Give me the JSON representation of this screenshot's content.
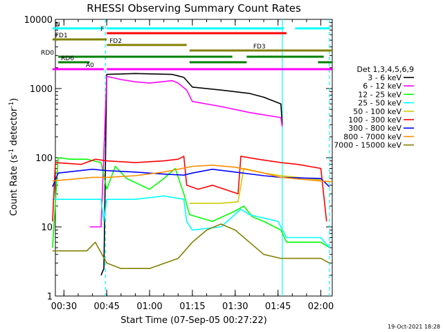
{
  "chart_data": {
    "type": "line",
    "title": "RHESSI Observing Summary Count Rates",
    "xlabel": "Start Time (07-Sep-05 00:27:22)",
    "ylabel": "Count Rate (s^-1 detector^-1)",
    "ylabel_parts": {
      "main": "Count Rate (s",
      "sup1": "-1",
      "mid": " detector",
      "sup2": "-1",
      "end": ")"
    },
    "y_scale": "log",
    "ylim": [
      1,
      10000
    ],
    "xlim": [
      "00:27:22",
      "02:04:30"
    ],
    "x_ticks": [
      "00:30",
      "00:45",
      "01:00",
      "01:15",
      "01:30",
      "01:45",
      "02:00"
    ],
    "y_ticks": [
      "1",
      "10",
      "100",
      "1000",
      "10000"
    ],
    "legend_title": "Det 1,3,4,5,6,9",
    "legend_position": "right",
    "footer_date": "19-Oct-2021 18:28",
    "series": [
      {
        "name": "3 - 6 keV",
        "color": "#000000",
        "points": [
          [
            "00:43",
            2
          ],
          [
            "00:44",
            2.5
          ],
          [
            "00:45",
            1600
          ],
          [
            "00:55",
            1650
          ],
          [
            "01:08",
            1600
          ],
          [
            "01:12",
            1450
          ],
          [
            "01:15",
            1050
          ],
          [
            "01:25",
            950
          ],
          [
            "01:35",
            850
          ],
          [
            "01:40",
            750
          ],
          [
            "01:46",
            600
          ],
          [
            "01:46.5",
            300
          ]
        ]
      },
      {
        "name": "6 - 12 keV",
        "color": "#ff00ff",
        "points": [
          [
            "00:39",
            10
          ],
          [
            "00:43",
            10
          ],
          [
            "00:45",
            1500
          ],
          [
            "00:50",
            1350
          ],
          [
            "00:55",
            1250
          ],
          [
            "01:00",
            1200
          ],
          [
            "01:08",
            1300
          ],
          [
            "01:10",
            1200
          ],
          [
            "01:13",
            950
          ],
          [
            "01:15",
            650
          ],
          [
            "01:25",
            550
          ],
          [
            "01:35",
            450
          ],
          [
            "01:46",
            380
          ],
          [
            "01:46.5",
            280
          ]
        ]
      },
      {
        "name": "12 - 25 keV",
        "color": "#00ff00",
        "points": [
          [
            "00:26",
            5
          ],
          [
            "00:28",
            100
          ],
          [
            "00:32",
            95
          ],
          [
            "00:38",
            95
          ],
          [
            "00:43",
            85
          ],
          [
            "00:45",
            35
          ],
          [
            "00:48",
            75
          ],
          [
            "00:52",
            50
          ],
          [
            "00:57",
            40
          ],
          [
            "01:00",
            35
          ],
          [
            "01:05",
            50
          ],
          [
            "01:09",
            70
          ],
          [
            "01:12",
            30
          ],
          [
            "01:14",
            15
          ],
          [
            "01:22",
            12
          ],
          [
            "01:30",
            17
          ],
          [
            "01:33",
            20
          ],
          [
            "01:36",
            14
          ],
          [
            "01:40",
            12
          ],
          [
            "01:46",
            9
          ],
          [
            "01:48",
            6
          ],
          [
            "02:00",
            6
          ],
          [
            "02:03",
            5
          ]
        ]
      },
      {
        "name": "25 - 50 keV",
        "color": "#00ffff",
        "points": [
          [
            "00:26",
            25
          ],
          [
            "00:43",
            25
          ],
          [
            "00:44",
            12
          ],
          [
            "00:45",
            25
          ],
          [
            "00:55",
            25
          ],
          [
            "01:05",
            28
          ],
          [
            "01:12",
            25
          ],
          [
            "01:13",
            12
          ],
          [
            "01:15",
            9
          ],
          [
            "01:25",
            10
          ],
          [
            "01:32",
            18
          ],
          [
            "01:35",
            15
          ],
          [
            "01:45",
            12
          ],
          [
            "01:48",
            7
          ],
          [
            "02:00",
            7
          ],
          [
            "02:03",
            5
          ]
        ]
      },
      {
        "name": "50 - 100 keV",
        "color": "#cccc00",
        "points": [
          [
            "01:14",
            22
          ],
          [
            "01:25",
            22
          ],
          [
            "01:31",
            23
          ],
          [
            "01:33",
            70
          ],
          [
            "01:40",
            60
          ],
          [
            "01:46",
            55
          ],
          [
            "02:00",
            48
          ]
        ]
      },
      {
        "name": "100 - 300 keV",
        "color": "#ff0000",
        "points": [
          [
            "00:26",
            12
          ],
          [
            "00:27",
            85
          ],
          [
            "00:36",
            80
          ],
          [
            "00:41",
            95
          ],
          [
            "00:45",
            90
          ],
          [
            "00:55",
            85
          ],
          [
            "01:05",
            90
          ],
          [
            "01:10",
            95
          ],
          [
            "01:12",
            105
          ],
          [
            "01:13",
            40
          ],
          [
            "01:17",
            35
          ],
          [
            "01:22",
            40
          ],
          [
            "01:31",
            30
          ],
          [
            "01:32",
            105
          ],
          [
            "01:38",
            95
          ],
          [
            "01:46",
            85
          ],
          [
            "01:52",
            80
          ],
          [
            "02:00",
            70
          ],
          [
            "02:02",
            12
          ]
        ]
      },
      {
        "name": "300 - 800 keV",
        "color": "#0000ff",
        "points": [
          [
            "00:26",
            38
          ],
          [
            "00:28",
            60
          ],
          [
            "00:40",
            68
          ],
          [
            "00:45",
            65
          ],
          [
            "00:55",
            62
          ],
          [
            "01:05",
            58
          ],
          [
            "01:12",
            56
          ],
          [
            "01:15",
            60
          ],
          [
            "01:22",
            68
          ],
          [
            "01:30",
            62
          ],
          [
            "01:40",
            55
          ],
          [
            "01:46",
            52
          ],
          [
            "02:00",
            50
          ],
          [
            "02:03",
            38
          ]
        ]
      },
      {
        "name": "800 - 7000 keV",
        "color": "#ff8c00",
        "points": [
          [
            "00:26",
            46
          ],
          [
            "00:40",
            52
          ],
          [
            "00:45",
            52
          ],
          [
            "00:55",
            55
          ],
          [
            "01:05",
            62
          ],
          [
            "01:15",
            75
          ],
          [
            "01:22",
            78
          ],
          [
            "01:30",
            73
          ],
          [
            "01:40",
            60
          ],
          [
            "01:46",
            52
          ],
          [
            "02:00",
            46
          ],
          [
            "02:04",
            45
          ]
        ]
      },
      {
        "name": "7000 - 15000 keV",
        "color": "#808000",
        "points": [
          [
            "00:26",
            4.5
          ],
          [
            "00:38",
            4.5
          ],
          [
            "00:41",
            6
          ],
          [
            "00:45",
            3
          ],
          [
            "00:50",
            2.5
          ],
          [
            "01:00",
            2.5
          ],
          [
            "01:10",
            3.5
          ],
          [
            "01:15",
            6
          ],
          [
            "01:20",
            9
          ],
          [
            "01:25",
            11
          ],
          [
            "01:30",
            9
          ],
          [
            "01:35",
            6
          ],
          [
            "01:40",
            4
          ],
          [
            "01:46",
            3.5
          ],
          [
            "02:00",
            3.5
          ],
          [
            "02:03",
            3
          ]
        ]
      }
    ],
    "flag_bars": [
      {
        "label": "N",
        "color": "#00ffff",
        "segments": [
          [
            "00:26",
            "00:44"
          ],
          [
            "00:45",
            "01:47"
          ],
          [
            "01:51",
            "02:03"
          ]
        ]
      },
      {
        "label": "F",
        "color": "#ff0000",
        "segments": [
          [
            "00:45",
            "01:48"
          ]
        ]
      },
      {
        "label": "FD1",
        "color": "#808000",
        "segments": [
          [
            "00:26",
            "00:45"
          ]
        ]
      },
      {
        "label": "FD2",
        "color": "#808000",
        "segments": [
          [
            "00:45",
            "01:13"
          ]
        ]
      },
      {
        "label": "FD3",
        "color": "#808000",
        "segments": [
          [
            "01:14",
            "02:04"
          ]
        ]
      },
      {
        "label": "RD0",
        "color": "#008000",
        "segments": [
          [
            "00:28",
            "01:29"
          ],
          [
            "01:34",
            "02:01"
          ]
        ]
      },
      {
        "label": "RD6",
        "color": "#008000",
        "segments": [
          [
            "00:28",
            "00:39"
          ],
          [
            "01:14",
            "01:34"
          ],
          [
            "01:59",
            "02:04"
          ]
        ]
      },
      {
        "label": "A0",
        "color": "#ff00ff",
        "segments": [
          [
            "00:26",
            "00:44"
          ],
          [
            "00:45",
            "02:04"
          ]
        ]
      }
    ],
    "vertical_markers": [
      {
        "time": "00:44.5",
        "color": "#00ffff",
        "style": "dashed"
      },
      {
        "time": "01:46.5",
        "color": "#00ffff",
        "style": "solid"
      },
      {
        "time": "02:03",
        "color": "#00ffff",
        "style": "dashed"
      }
    ]
  }
}
